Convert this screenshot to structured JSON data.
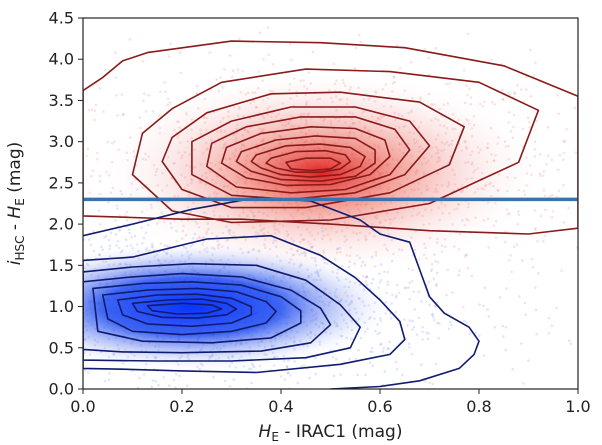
{
  "chart_data": {
    "type": "scatter",
    "title": "",
    "xlabel": {
      "main": "H",
      "sub": "E",
      "rest": " - IRAC1 (mag)"
    },
    "ylabel": {
      "main1": "i",
      "sub1": "HSC",
      "mid": " - ",
      "main2": "H",
      "sub2": "E",
      "rest": " (mag)"
    },
    "xlim": [
      0.0,
      1.0
    ],
    "ylim": [
      0.0,
      4.5
    ],
    "x_ticks": [
      {
        "value": 0.0,
        "label": "0.0"
      },
      {
        "value": 0.2,
        "label": "0.2"
      },
      {
        "value": 0.4,
        "label": "0.4"
      },
      {
        "value": 0.6,
        "label": "0.6"
      },
      {
        "value": 0.8,
        "label": "0.8"
      },
      {
        "value": 1.0,
        "label": "1.0"
      }
    ],
    "y_ticks": [
      {
        "value": 0.0,
        "label": "0.0"
      },
      {
        "value": 0.5,
        "label": "0.5"
      },
      {
        "value": 1.0,
        "label": "1.0"
      },
      {
        "value": 1.5,
        "label": "1.5"
      },
      {
        "value": 2.0,
        "label": "2.0"
      },
      {
        "value": 2.5,
        "label": "2.5"
      },
      {
        "value": 3.0,
        "label": "3.0"
      },
      {
        "value": 3.5,
        "label": "3.5"
      },
      {
        "value": 4.0,
        "label": "4.0"
      },
      {
        "value": 4.5,
        "label": "4.5"
      }
    ],
    "grid": false,
    "legend": "none",
    "series": [
      {
        "color": "#dd2222",
        "contour_color": "#8b1a1a",
        "density_center": [
          0.48,
          2.62
        ],
        "contours": [
          [
            [
              0.0,
              3.62
            ],
            [
              0.04,
              3.78
            ],
            [
              0.08,
              3.98
            ],
            [
              0.13,
              4.08
            ],
            [
              0.3,
              4.22
            ],
            [
              0.48,
              4.2
            ],
            [
              0.65,
              4.14
            ],
            [
              0.85,
              3.92
            ],
            [
              1.0,
              3.55
            ],
            [
              1.0,
              1.95
            ],
            [
              0.9,
              1.88
            ],
            [
              0.7,
              1.92
            ],
            [
              0.5,
              2.0
            ],
            [
              0.32,
              2.06
            ],
            [
              0.2,
              2.06
            ],
            [
              0.1,
              2.08
            ],
            [
              0.0,
              2.1
            ]
          ],
          [
            [
              0.12,
              3.1
            ],
            [
              0.18,
              3.4
            ],
            [
              0.28,
              3.72
            ],
            [
              0.45,
              3.88
            ],
            [
              0.62,
              3.85
            ],
            [
              0.8,
              3.72
            ],
            [
              0.92,
              3.38
            ],
            [
              0.88,
              2.75
            ],
            [
              0.7,
              2.25
            ],
            [
              0.5,
              2.05
            ],
            [
              0.3,
              2.02
            ],
            [
              0.18,
              2.16
            ],
            [
              0.1,
              2.6
            ]
          ],
          [
            [
              0.18,
              3.05
            ],
            [
              0.25,
              3.35
            ],
            [
              0.38,
              3.58
            ],
            [
              0.52,
              3.6
            ],
            [
              0.68,
              3.48
            ],
            [
              0.77,
              3.18
            ],
            [
              0.74,
              2.72
            ],
            [
              0.62,
              2.38
            ],
            [
              0.45,
              2.2
            ],
            [
              0.3,
              2.2
            ],
            [
              0.2,
              2.42
            ],
            [
              0.16,
              2.76
            ]
          ],
          [
            [
              0.22,
              3.0
            ],
            [
              0.3,
              3.25
            ],
            [
              0.42,
              3.42
            ],
            [
              0.55,
              3.42
            ],
            [
              0.66,
              3.25
            ],
            [
              0.7,
              2.95
            ],
            [
              0.65,
              2.6
            ],
            [
              0.55,
              2.38
            ],
            [
              0.42,
              2.3
            ],
            [
              0.3,
              2.35
            ],
            [
              0.22,
              2.6
            ]
          ],
          [
            [
              0.26,
              2.98
            ],
            [
              0.33,
              3.18
            ],
            [
              0.44,
              3.3
            ],
            [
              0.55,
              3.3
            ],
            [
              0.63,
              3.15
            ],
            [
              0.66,
              2.9
            ],
            [
              0.62,
              2.6
            ],
            [
              0.53,
              2.42
            ],
            [
              0.42,
              2.38
            ],
            [
              0.31,
              2.45
            ],
            [
              0.25,
              2.7
            ]
          ],
          [
            [
              0.29,
              2.93
            ],
            [
              0.36,
              3.1
            ],
            [
              0.46,
              3.18
            ],
            [
              0.55,
              3.16
            ],
            [
              0.61,
              3.02
            ],
            [
              0.62,
              2.82
            ],
            [
              0.58,
              2.6
            ],
            [
              0.5,
              2.48
            ],
            [
              0.41,
              2.47
            ],
            [
              0.33,
              2.56
            ],
            [
              0.28,
              2.74
            ]
          ],
          [
            [
              0.32,
              2.88
            ],
            [
              0.39,
              3.02
            ],
            [
              0.47,
              3.07
            ],
            [
              0.55,
              3.04
            ],
            [
              0.59,
              2.9
            ],
            [
              0.59,
              2.74
            ],
            [
              0.55,
              2.58
            ],
            [
              0.48,
              2.52
            ],
            [
              0.4,
              2.54
            ],
            [
              0.34,
              2.64
            ],
            [
              0.31,
              2.76
            ]
          ],
          [
            [
              0.35,
              2.84
            ],
            [
              0.41,
              2.95
            ],
            [
              0.48,
              2.97
            ],
            [
              0.54,
              2.93
            ],
            [
              0.57,
              2.82
            ],
            [
              0.56,
              2.7
            ],
            [
              0.52,
              2.6
            ],
            [
              0.46,
              2.57
            ],
            [
              0.4,
              2.6
            ],
            [
              0.36,
              2.68
            ],
            [
              0.34,
              2.76
            ]
          ],
          [
            [
              0.38,
              2.8
            ],
            [
              0.43,
              2.88
            ],
            [
              0.49,
              2.89
            ],
            [
              0.53,
              2.84
            ],
            [
              0.54,
              2.76
            ],
            [
              0.52,
              2.67
            ],
            [
              0.48,
              2.63
            ],
            [
              0.43,
              2.63
            ],
            [
              0.39,
              2.68
            ],
            [
              0.37,
              2.74
            ]
          ],
          [
            [
              0.41,
              2.75
            ],
            [
              0.45,
              2.8
            ],
            [
              0.5,
              2.8
            ],
            [
              0.52,
              2.74
            ],
            [
              0.5,
              2.67
            ],
            [
              0.46,
              2.65
            ],
            [
              0.42,
              2.67
            ]
          ]
        ]
      },
      {
        "color": "#1a3fe0",
        "contour_color": "#101c70",
        "density_center": [
          0.22,
          1.0
        ],
        "contours": [
          [
            [
              0.0,
              1.86
            ],
            [
              0.1,
              2.0
            ],
            [
              0.22,
              2.18
            ],
            [
              0.35,
              2.32
            ],
            [
              0.46,
              2.28
            ],
            [
              0.56,
              2.05
            ],
            [
              0.6,
              1.88
            ],
            [
              0.66,
              1.78
            ],
            [
              0.68,
              1.45
            ],
            [
              0.7,
              1.12
            ],
            [
              0.73,
              0.92
            ],
            [
              0.78,
              0.75
            ],
            [
              0.8,
              0.58
            ],
            [
              0.79,
              0.42
            ],
            [
              0.76,
              0.25
            ],
            [
              0.68,
              0.1
            ],
            [
              0.6,
              0.03
            ],
            [
              0.5,
              0.0
            ]
          ],
          [
            [
              0.0,
              1.56
            ],
            [
              0.1,
              1.6
            ],
            [
              0.25,
              1.82
            ],
            [
              0.38,
              1.86
            ],
            [
              0.48,
              1.62
            ],
            [
              0.55,
              1.35
            ],
            [
              0.6,
              1.08
            ],
            [
              0.64,
              0.82
            ],
            [
              0.65,
              0.6
            ],
            [
              0.62,
              0.42
            ],
            [
              0.52,
              0.3
            ],
            [
              0.35,
              0.2
            ],
            [
              0.2,
              0.22
            ],
            [
              0.08,
              0.24
            ],
            [
              0.0,
              0.25
            ]
          ],
          [
            [
              0.0,
              1.42
            ],
            [
              0.1,
              1.48
            ],
            [
              0.22,
              1.52
            ],
            [
              0.35,
              1.5
            ],
            [
              0.45,
              1.32
            ],
            [
              0.52,
              1.02
            ],
            [
              0.56,
              0.75
            ],
            [
              0.54,
              0.5
            ],
            [
              0.45,
              0.38
            ],
            [
              0.3,
              0.34
            ],
            [
              0.15,
              0.34
            ],
            [
              0.0,
              0.35
            ]
          ],
          [
            [
              0.0,
              1.3
            ],
            [
              0.1,
              1.36
            ],
            [
              0.2,
              1.4
            ],
            [
              0.32,
              1.36
            ],
            [
              0.42,
              1.2
            ],
            [
              0.48,
              0.98
            ],
            [
              0.5,
              0.78
            ],
            [
              0.46,
              0.56
            ],
            [
              0.36,
              0.46
            ],
            [
              0.2,
              0.44
            ],
            [
              0.08,
              0.45
            ],
            [
              0.0,
              0.48
            ]
          ],
          [
            [
              0.02,
              1.22
            ],
            [
              0.12,
              1.28
            ],
            [
              0.22,
              1.3
            ],
            [
              0.32,
              1.26
            ],
            [
              0.4,
              1.12
            ],
            [
              0.44,
              0.95
            ],
            [
              0.44,
              0.8
            ],
            [
              0.38,
              0.62
            ],
            [
              0.26,
              0.56
            ],
            [
              0.12,
              0.58
            ],
            [
              0.03,
              0.7
            ]
          ],
          [
            [
              0.04,
              1.14
            ],
            [
              0.13,
              1.2
            ],
            [
              0.23,
              1.22
            ],
            [
              0.31,
              1.18
            ],
            [
              0.37,
              1.06
            ],
            [
              0.39,
              0.94
            ],
            [
              0.37,
              0.8
            ],
            [
              0.3,
              0.7
            ],
            [
              0.2,
              0.66
            ],
            [
              0.1,
              0.7
            ],
            [
              0.05,
              0.85
            ]
          ],
          [
            [
              0.07,
              1.08
            ],
            [
              0.15,
              1.14
            ],
            [
              0.23,
              1.15
            ],
            [
              0.3,
              1.1
            ],
            [
              0.34,
              1.0
            ],
            [
              0.34,
              0.9
            ],
            [
              0.3,
              0.8
            ],
            [
              0.22,
              0.76
            ],
            [
              0.13,
              0.79
            ],
            [
              0.08,
              0.9
            ]
          ],
          [
            [
              0.1,
              1.04
            ],
            [
              0.17,
              1.08
            ],
            [
              0.24,
              1.09
            ],
            [
              0.29,
              1.04
            ],
            [
              0.31,
              0.97
            ],
            [
              0.29,
              0.9
            ],
            [
              0.23,
              0.86
            ],
            [
              0.16,
              0.87
            ],
            [
              0.11,
              0.94
            ]
          ],
          [
            [
              0.13,
              1.01
            ],
            [
              0.2,
              1.04
            ],
            [
              0.26,
              1.02
            ],
            [
              0.28,
              0.97
            ],
            [
              0.25,
              0.92
            ],
            [
              0.19,
              0.91
            ],
            [
              0.14,
              0.95
            ]
          ]
        ]
      }
    ],
    "annotations": [
      {
        "type": "hline",
        "y": 2.3,
        "color": "#3a72b0"
      }
    ]
  }
}
